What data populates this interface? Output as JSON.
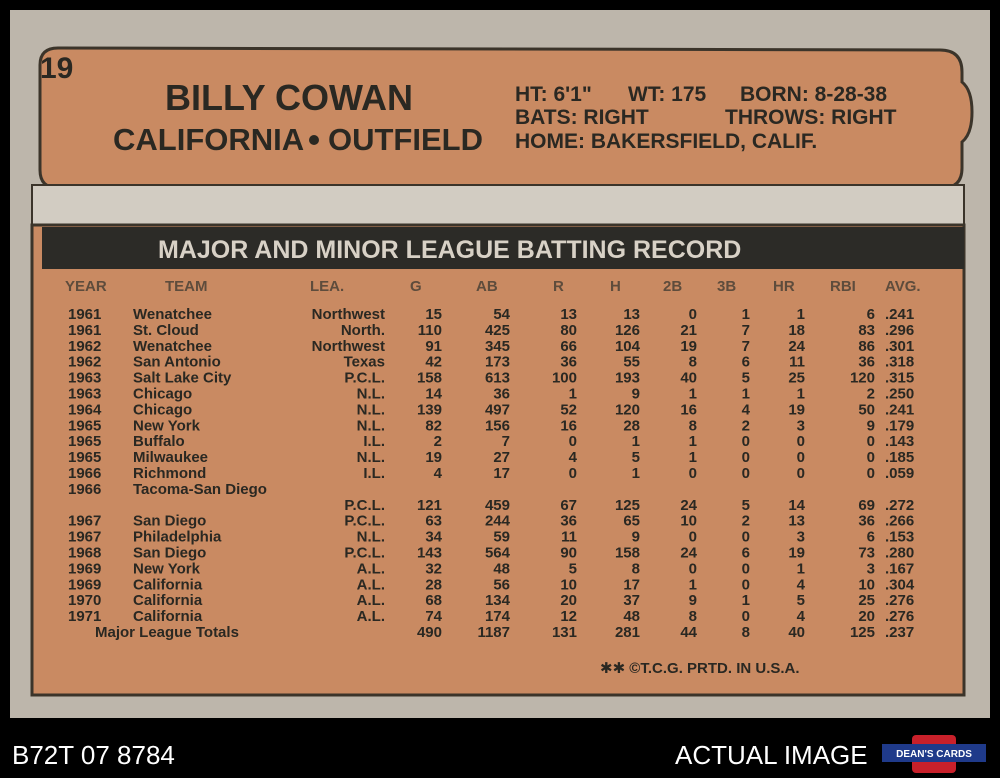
{
  "card_number": "19",
  "player": {
    "name": "BILLY COWAN",
    "team": "CALIFORNIA",
    "position": "OUTFIELD"
  },
  "bio": {
    "height": "HT: 6'1\"",
    "weight": "WT: 175",
    "born": "BORN: 8-28-38",
    "bats": "BATS: RIGHT",
    "throws": "THROWS: RIGHT",
    "home": "HOME: BAKERSFIELD, CALIF."
  },
  "section_title": "MAJOR AND MINOR LEAGUE BATTING RECORD",
  "table": {
    "headers": [
      "YEAR",
      "TEAM",
      "LEA.",
      "G",
      "AB",
      "R",
      "H",
      "2B",
      "3B",
      "HR",
      "RBI",
      "AVG."
    ],
    "rows": [
      [
        "1961",
        "Wenatchee",
        "Northwest",
        "15",
        "54",
        "13",
        "13",
        "0",
        "1",
        "1",
        "6",
        ".241"
      ],
      [
        "1961",
        "St. Cloud",
        "North.",
        "110",
        "425",
        "80",
        "126",
        "21",
        "7",
        "18",
        "83",
        ".296"
      ],
      [
        "1962",
        "Wenatchee",
        "Northwest",
        "91",
        "345",
        "66",
        "104",
        "19",
        "7",
        "24",
        "86",
        ".301"
      ],
      [
        "1962",
        "San Antonio",
        "Texas",
        "42",
        "173",
        "36",
        "55",
        "8",
        "6",
        "11",
        "36",
        ".318"
      ],
      [
        "1963",
        "Salt Lake City",
        "P.C.L.",
        "158",
        "613",
        "100",
        "193",
        "40",
        "5",
        "25",
        "120",
        ".315"
      ],
      [
        "1963",
        "Chicago",
        "N.L.",
        "14",
        "36",
        "1",
        "9",
        "1",
        "1",
        "1",
        "2",
        ".250"
      ],
      [
        "1964",
        "Chicago",
        "N.L.",
        "139",
        "497",
        "52",
        "120",
        "16",
        "4",
        "19",
        "50",
        ".241"
      ],
      [
        "1965",
        "New York",
        "N.L.",
        "82",
        "156",
        "16",
        "28",
        "8",
        "2",
        "3",
        "9",
        ".179"
      ],
      [
        "1965",
        "Buffalo",
        "I.L.",
        "2",
        "7",
        "0",
        "1",
        "1",
        "0",
        "0",
        "0",
        ".143"
      ],
      [
        "1965",
        "Milwaukee",
        "N.L.",
        "19",
        "27",
        "4",
        "5",
        "1",
        "0",
        "0",
        "0",
        ".185"
      ],
      [
        "1966",
        "Richmond",
        "I.L.",
        "4",
        "17",
        "0",
        "1",
        "0",
        "0",
        "0",
        "0",
        ".059"
      ],
      [
        "1966",
        "Tacoma-San Diego",
        "P.C.L.",
        "121",
        "459",
        "67",
        "125",
        "24",
        "5",
        "14",
        "69",
        ".272"
      ],
      [
        "1967",
        "San Diego",
        "P.C.L.",
        "63",
        "244",
        "36",
        "65",
        "10",
        "2",
        "13",
        "36",
        ".266"
      ],
      [
        "1967",
        "Philadelphia",
        "N.L.",
        "34",
        "59",
        "11",
        "9",
        "0",
        "0",
        "3",
        "6",
        ".153"
      ],
      [
        "1968",
        "San Diego",
        "P.C.L.",
        "143",
        "564",
        "90",
        "158",
        "24",
        "6",
        "19",
        "73",
        ".280"
      ],
      [
        "1969",
        "New York",
        "A.L.",
        "32",
        "48",
        "5",
        "8",
        "0",
        "0",
        "1",
        "3",
        ".167"
      ],
      [
        "1969",
        "California",
        "A.L.",
        "28",
        "56",
        "10",
        "17",
        "1",
        "0",
        "4",
        "10",
        ".304"
      ],
      [
        "1970",
        "California",
        "A.L.",
        "68",
        "134",
        "20",
        "37",
        "9",
        "1",
        "5",
        "25",
        ".276"
      ],
      [
        "1971",
        "California",
        "A.L.",
        "74",
        "174",
        "12",
        "48",
        "8",
        "0",
        "4",
        "20",
        ".276"
      ]
    ],
    "totals": [
      "Major League Totals",
      "490",
      "1187",
      "131",
      "281",
      "44",
      "8",
      "40",
      "125",
      ".237"
    ]
  },
  "footer": "✱✱ ©T.C.G. PRTD. IN U.S.A.",
  "caption": {
    "id": "B72T 07 8784",
    "note": "ACTUAL IMAGE",
    "logo": "DEAN'S CARDS"
  }
}
